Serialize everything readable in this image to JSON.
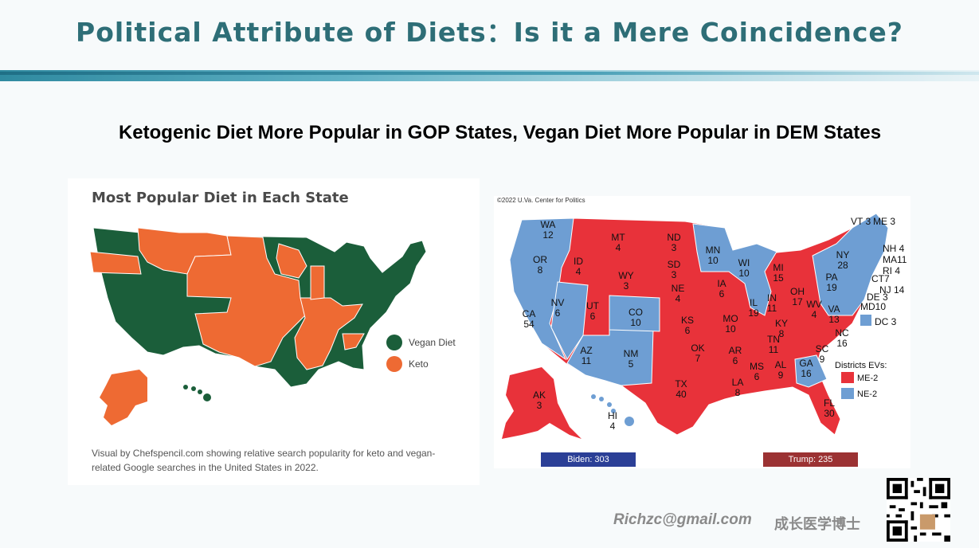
{
  "slide": {
    "title": "Political Attribute of Diets：Is it a Mere Coincidence?",
    "subtitle": "Ketogenic Diet More Popular in GOP States, Vegan Diet More Popular in DEM States"
  },
  "left_map": {
    "title": "Most Popular Diet in Each State",
    "legend": [
      {
        "label": "Vegan Diet",
        "color": "#1b5e3a"
      },
      {
        "label": "Keto",
        "color": "#ee6a33"
      }
    ],
    "caption": "Visual by Chefspencil.com showing relative search popularity for keto and vegan-related Google searches in the United States in 2022."
  },
  "right_map": {
    "copyright": "©2022 U.Va. Center for Politics",
    "dem_color": "#6e9ed3",
    "gop_color": "#e8323a",
    "states": [
      {
        "abbr": "WA",
        "ev": "12"
      },
      {
        "abbr": "OR",
        "ev": "8"
      },
      {
        "abbr": "CA",
        "ev": "54"
      },
      {
        "abbr": "NV",
        "ev": "6"
      },
      {
        "abbr": "ID",
        "ev": "4"
      },
      {
        "abbr": "MT",
        "ev": "4"
      },
      {
        "abbr": "WY",
        "ev": "3"
      },
      {
        "abbr": "UT",
        "ev": "6"
      },
      {
        "abbr": "CO",
        "ev": "10"
      },
      {
        "abbr": "AZ",
        "ev": "11"
      },
      {
        "abbr": "NM",
        "ev": "5"
      },
      {
        "abbr": "ND",
        "ev": "3"
      },
      {
        "abbr": "SD",
        "ev": "3"
      },
      {
        "abbr": "NE",
        "ev": "4"
      },
      {
        "abbr": "KS",
        "ev": "6"
      },
      {
        "abbr": "OK",
        "ev": "7"
      },
      {
        "abbr": "TX",
        "ev": "40"
      },
      {
        "abbr": "MN",
        "ev": "10"
      },
      {
        "abbr": "IA",
        "ev": "6"
      },
      {
        "abbr": "MO",
        "ev": "10"
      },
      {
        "abbr": "AR",
        "ev": "6"
      },
      {
        "abbr": "LA",
        "ev": "8"
      },
      {
        "abbr": "WI",
        "ev": "10"
      },
      {
        "abbr": "IL",
        "ev": "19"
      },
      {
        "abbr": "MI",
        "ev": "15"
      },
      {
        "abbr": "IN",
        "ev": "11"
      },
      {
        "abbr": "OH",
        "ev": "17"
      },
      {
        "abbr": "KY",
        "ev": "8"
      },
      {
        "abbr": "TN",
        "ev": "11"
      },
      {
        "abbr": "MS",
        "ev": "6"
      },
      {
        "abbr": "AL",
        "ev": "9"
      },
      {
        "abbr": "GA",
        "ev": "16"
      },
      {
        "abbr": "FL",
        "ev": "30"
      },
      {
        "abbr": "SC",
        "ev": "9"
      },
      {
        "abbr": "NC",
        "ev": "16"
      },
      {
        "abbr": "VA",
        "ev": "13"
      },
      {
        "abbr": "WV",
        "ev": "4"
      },
      {
        "abbr": "PA",
        "ev": "19"
      },
      {
        "abbr": "NY",
        "ev": "28"
      },
      {
        "abbr": "AK",
        "ev": "3"
      },
      {
        "abbr": "HI",
        "ev": "4"
      }
    ],
    "east_labels": [
      "VT 3",
      "ME 3",
      "NH 4",
      "MA11",
      "RI 4",
      "CT7",
      "NJ 14",
      "DE 3",
      "MD10",
      "DC 3"
    ],
    "districts_title": "Districts EVs:",
    "districts": [
      {
        "label": "ME-2",
        "color": "#e8323a"
      },
      {
        "label": "NE-2",
        "color": "#6e9ed3"
      }
    ],
    "biden_label": "Biden: 303",
    "trump_label": "Trump: 235",
    "biden_color": "#2b3f96",
    "trump_color": "#9b3233"
  },
  "footer": {
    "email": "Richzc@gmail.com",
    "chinese_name": "成长医学博士"
  }
}
